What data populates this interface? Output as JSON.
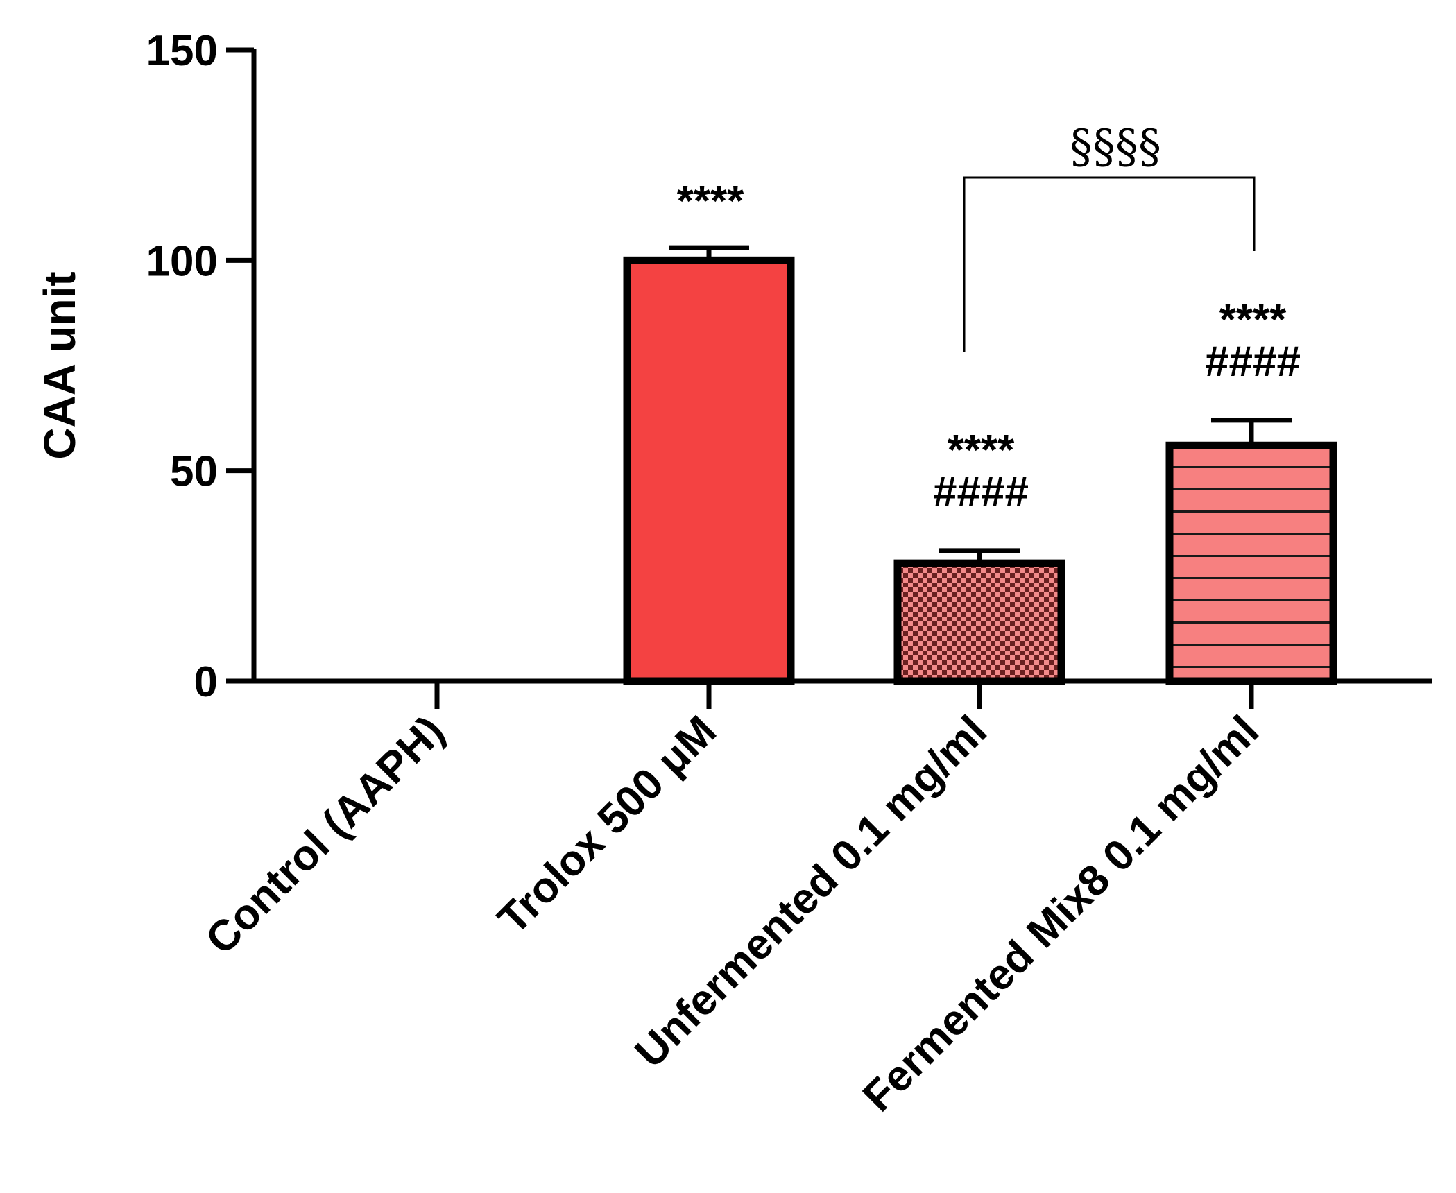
{
  "chart_data": {
    "type": "bar",
    "title": "",
    "xlabel": "",
    "ylabel": "CAA unit",
    "ylim": [
      0,
      150
    ],
    "yticks": [
      0,
      50,
      100,
      150
    ],
    "categories": [
      "Control (AAPH)",
      "Trolox 500 μM",
      "Unfermented 0.1 mg/ml",
      "Fermented Mix8 0.1 mg/ml"
    ],
    "values": [
      0,
      100,
      28,
      56
    ],
    "errors": [
      0,
      3,
      3,
      6
    ],
    "fills": [
      "none",
      "solid",
      "checkered",
      "horizontal-stripes"
    ],
    "colors": {
      "bar": "#f44242",
      "pattern_light": "#f48a8a",
      "pattern_dark": "#6b2020",
      "stripe_fill": "#f78080"
    },
    "annotations": [
      {
        "category": 1,
        "lines": [
          "****"
        ]
      },
      {
        "category": 2,
        "lines": [
          "****",
          "####"
        ]
      },
      {
        "category": 3,
        "lines": [
          "****",
          "####"
        ]
      }
    ],
    "comparison": {
      "from": 2,
      "to": 3,
      "label": "§§§§"
    }
  }
}
